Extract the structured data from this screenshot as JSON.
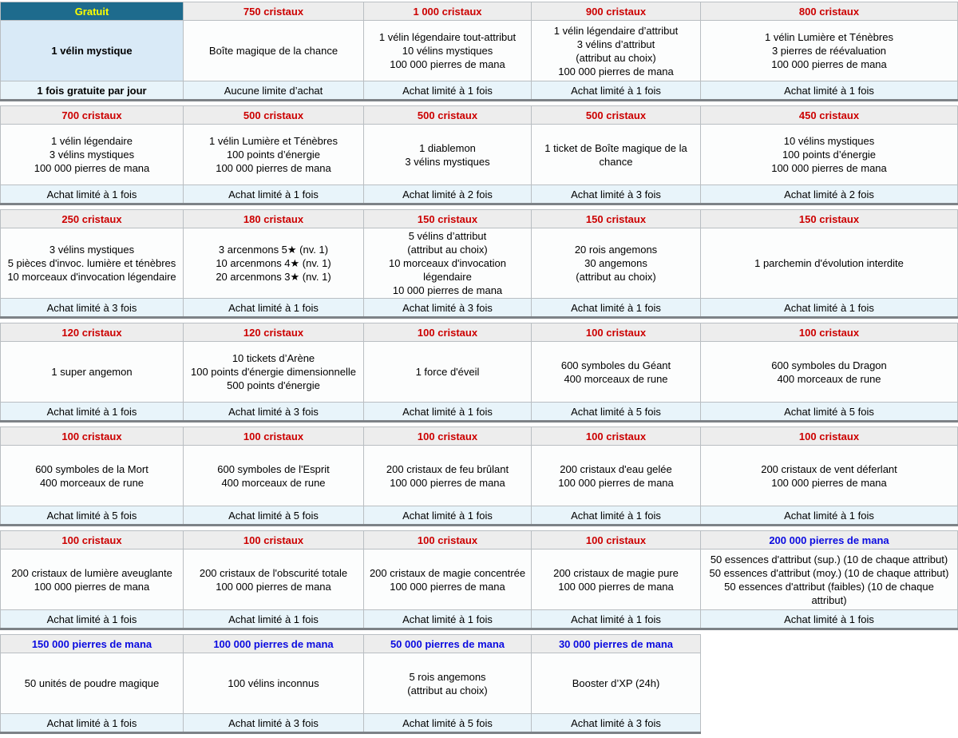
{
  "colors": {
    "price_red": "#cc0000",
    "price_blue": "#0b0be0",
    "free_header_bg": "#1e6b8d",
    "free_header_text": "#ffff00",
    "price_header_bg": "#ededed",
    "body_bg": "#fcfdfd",
    "body_highlight_bg": "#d9eaf7",
    "limit_bg": "#e8f4fa"
  },
  "tables": [
    {
      "columns": [
        {
          "price": "Gratuit",
          "style": "free",
          "highlight": true,
          "bold_limit": true,
          "items": [
            "1 vélin mystique"
          ],
          "limit": "1 fois gratuite par jour"
        },
        {
          "price": "750 cristaux",
          "style": "red",
          "items": [
            "Boîte magique de la chance"
          ],
          "limit": "Aucune limite d’achat"
        },
        {
          "price": "1 000 cristaux",
          "style": "red",
          "items": [
            "1 vélin légendaire tout-attribut",
            "10 vélins mystiques",
            "100 000 pierres de mana"
          ],
          "limit": "Achat limité à 1 fois"
        },
        {
          "price": "900 cristaux",
          "style": "red",
          "items": [
            "1 vélin légendaire d’attribut",
            "3 vélins d’attribut",
            "(attribut au choix)",
            "100 000 pierres de mana"
          ],
          "limit": "Achat limité à 1 fois"
        },
        {
          "price": "800 cristaux",
          "style": "red",
          "items": [
            "1 vélin Lumière et Ténèbres",
            "3 pierres de réévaluation",
            "100 000 pierres de mana"
          ],
          "limit": "Achat limité à 1 fois"
        }
      ]
    },
    {
      "columns": [
        {
          "price": "700 cristaux",
          "style": "red",
          "items": [
            "1 vélin légendaire",
            "3 vélins mystiques",
            "100 000 pierres de mana"
          ],
          "limit": "Achat limité à 1 fois"
        },
        {
          "price": "500 cristaux",
          "style": "red",
          "items": [
            "1 vélin Lumière et Ténèbres",
            "100 points d’énergie",
            "100 000 pierres de mana"
          ],
          "limit": "Achat limité à 1 fois"
        },
        {
          "price": "500 cristaux",
          "style": "red",
          "items": [
            "1 diablemon",
            "3 vélins mystiques"
          ],
          "limit": "Achat limité à 2 fois"
        },
        {
          "price": "500 cristaux",
          "style": "red",
          "items": [
            "1 ticket de Boîte magique de la chance"
          ],
          "limit": "Achat limité à 3 fois"
        },
        {
          "price": "450 cristaux",
          "style": "red",
          "items": [
            "10 vélins mystiques",
            "100 points d’énergie",
            "100 000 pierres de mana"
          ],
          "limit": "Achat limité à 2 fois"
        }
      ]
    },
    {
      "columns": [
        {
          "price": "250 cristaux",
          "style": "red",
          "items": [
            "3 vélins mystiques",
            "5 pièces d'invoc. lumière et ténèbres",
            "10 morceaux d'invocation légendaire"
          ],
          "limit": "Achat limité à 3 fois"
        },
        {
          "price": "180 cristaux",
          "style": "red",
          "items": [
            "3 arcenmons 5★ (nv. 1)",
            "10 arcenmons 4★ (nv. 1)",
            "20 arcenmons 3★ (nv. 1)"
          ],
          "limit": "Achat limité à 1 fois"
        },
        {
          "price": "150 cristaux",
          "style": "red",
          "items": [
            "5 vélins d’attribut",
            "(attribut au choix)",
            "10 morceaux d'invocation légendaire",
            "10 000 pierres de mana"
          ],
          "limit": "Achat limité à 3 fois"
        },
        {
          "price": "150 cristaux",
          "style": "red",
          "items": [
            "20 rois angemons",
            "30 angemons",
            "(attribut au choix)"
          ],
          "limit": "Achat limité à 1 fois"
        },
        {
          "price": "150 cristaux",
          "style": "red",
          "items": [
            "1 parchemin d'évolution interdite"
          ],
          "limit": "Achat limité à 1 fois"
        }
      ]
    },
    {
      "columns": [
        {
          "price": "120 cristaux",
          "style": "red",
          "items": [
            "1 super angemon"
          ],
          "limit": "Achat limité à 1 fois"
        },
        {
          "price": "120 cristaux",
          "style": "red",
          "items": [
            "10 tickets d’Arène",
            "100 points d'énergie dimensionnelle",
            "500 points d'énergie"
          ],
          "limit": "Achat limité à 3 fois"
        },
        {
          "price": "100 cristaux",
          "style": "red",
          "items": [
            "1 force d'éveil"
          ],
          "limit": "Achat limité à 1 fois"
        },
        {
          "price": "100 cristaux",
          "style": "red",
          "items": [
            "600 symboles du Géant",
            "400 morceaux de rune"
          ],
          "limit": "Achat limité à 5 fois"
        },
        {
          "price": "100 cristaux",
          "style": "red",
          "items": [
            "600 symboles du Dragon",
            "400 morceaux de rune"
          ],
          "limit": "Achat limité à 5 fois"
        }
      ]
    },
    {
      "columns": [
        {
          "price": "100 cristaux",
          "style": "red",
          "items": [
            "600 symboles de la Mort",
            "400 morceaux de rune"
          ],
          "limit": "Achat limité à 5 fois"
        },
        {
          "price": "100 cristaux",
          "style": "red",
          "items": [
            "600 symboles de l'Esprit",
            "400 morceaux de rune"
          ],
          "limit": "Achat limité à 5 fois"
        },
        {
          "price": "100 cristaux",
          "style": "red",
          "items": [
            "200 cristaux de feu brûlant",
            "100 000 pierres de mana"
          ],
          "limit": "Achat limité à 1 fois"
        },
        {
          "price": "100 cristaux",
          "style": "red",
          "items": [
            "200 cristaux d'eau gelée",
            "100 000 pierres de mana"
          ],
          "limit": "Achat limité à 1 fois"
        },
        {
          "price": "100 cristaux",
          "style": "red",
          "items": [
            "200 cristaux de vent déferlant",
            "100 000 pierres de mana"
          ],
          "limit": "Achat limité à 1 fois"
        }
      ]
    },
    {
      "columns": [
        {
          "price": "100 cristaux",
          "style": "red",
          "items": [
            "200 cristaux de lumière aveuglante",
            "100 000 pierres de mana"
          ],
          "limit": "Achat limité à 1 fois"
        },
        {
          "price": "100 cristaux",
          "style": "red",
          "items": [
            "200 cristaux de l'obscurité totale",
            "100 000 pierres de mana"
          ],
          "limit": "Achat limité à 1 fois"
        },
        {
          "price": "100 cristaux",
          "style": "red",
          "items": [
            "200 cristaux de magie concentrée",
            "100 000 pierres de mana"
          ],
          "limit": "Achat limité à 1 fois"
        },
        {
          "price": "100 cristaux",
          "style": "red",
          "items": [
            "200 cristaux de magie pure",
            "100 000 pierres de mana"
          ],
          "limit": "Achat limité à 1 fois"
        },
        {
          "price": "200 000 pierres de mana",
          "style": "blue",
          "items": [
            "50 essences d'attribut (sup.) (10 de chaque attribut)",
            "50 essences d'attribut (moy.) (10 de chaque attribut)",
            "50 essences d'attribut (faibles) (10 de chaque attribut)"
          ],
          "limit": "Achat limité à 1 fois"
        }
      ]
    },
    {
      "columns": [
        {
          "price": "150 000 pierres de mana",
          "style": "blue",
          "items": [
            "50 unités de poudre magique"
          ],
          "limit": "Achat limité à 1 fois"
        },
        {
          "price": "100 000 pierres de mana",
          "style": "blue",
          "items": [
            "100 vélins inconnus"
          ],
          "limit": "Achat limité à 3 fois"
        },
        {
          "price": "50 000 pierres de mana",
          "style": "blue",
          "items": [
            "5 rois angemons",
            "(attribut au choix)"
          ],
          "limit": "Achat limité à 5 fois"
        },
        {
          "price": "30 000 pierres de mana",
          "style": "blue",
          "items": [
            "Booster d’XP (24h)"
          ],
          "limit": "Achat limité à 3 fois"
        }
      ]
    }
  ]
}
